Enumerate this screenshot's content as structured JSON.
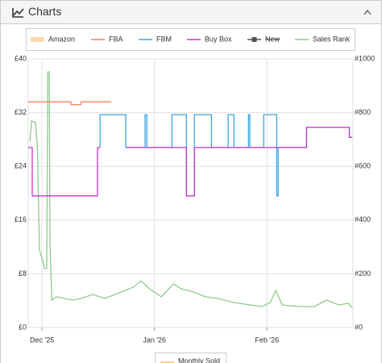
{
  "panel": {
    "title": "Charts"
  },
  "chart_data": {
    "type": "line",
    "xlim": [
      -3.8,
      85.7
    ],
    "xticks": [
      {
        "value": 0,
        "label": "Dec '25"
      },
      {
        "value": 31,
        "label": "Jan '26"
      },
      {
        "value": 62,
        "label": "Feb '26"
      }
    ],
    "ylim": [
      0,
      40
    ],
    "yticks": [
      {
        "value": 0,
        "label": "£0"
      },
      {
        "value": 8,
        "label": "£8"
      },
      {
        "value": 16,
        "label": "£16"
      },
      {
        "value": 24,
        "label": "£24"
      },
      {
        "value": 32,
        "label": "£32"
      },
      {
        "value": 40,
        "label": "£40"
      }
    ],
    "y2lim": [
      0,
      1000
    ],
    "y2ticks": [
      {
        "value": 0,
        "label": "#0"
      },
      {
        "value": 200,
        "label": "#200"
      },
      {
        "value": 400,
        "label": "#400"
      },
      {
        "value": 600,
        "label": "#600"
      },
      {
        "value": 800,
        "label": "#800"
      },
      {
        "value": 1000,
        "label": "#1000"
      }
    ],
    "grid": true,
    "series": [
      {
        "name": "Amazon",
        "color": "#f5c07a",
        "swatch": "box",
        "x": [],
        "values": []
      },
      {
        "name": "FBA",
        "color": "#f0825f",
        "x": [
          -3.8,
          8,
          8,
          10.7,
          10.7,
          19.1
        ],
        "values": [
          33.6,
          33.6,
          33.2,
          33.2,
          33.6,
          33.6
        ]
      },
      {
        "name": "FBM",
        "color": "#3aa6de",
        "x": [
          16,
          16,
          23.1,
          23.1,
          28.4,
          28.4,
          28.9,
          28.9,
          35.8,
          35.8,
          39.8,
          39.8,
          42,
          42,
          46.7,
          46.7,
          51.3,
          51.3,
          52.9,
          52.9,
          56.9,
          56.9,
          57.3,
          57.3,
          61.1,
          61.1,
          64.7,
          64.7,
          65.1,
          65.1,
          72.9,
          72.9,
          84.7,
          84.7,
          85.5
        ],
        "values": [
          26.8,
          31.7,
          31.7,
          26.8,
          26.8,
          31.7,
          31.7,
          26.8,
          26.8,
          31.7,
          31.7,
          19.6,
          19.6,
          31.7,
          31.7,
          26.8,
          26.8,
          31.7,
          31.7,
          26.8,
          26.8,
          31.7,
          31.7,
          26.8,
          26.8,
          31.7,
          31.7,
          19.6,
          19.6,
          26.8,
          26.8,
          29.8,
          29.8,
          28.3,
          28.3
        ]
      },
      {
        "name": "Buy Box",
        "color": "#cc33cc",
        "x": [
          -3.8,
          -2.7,
          -2.7,
          15.3,
          15.3,
          16,
          20,
          23.1,
          39.8,
          39.8,
          42,
          42,
          72.9,
          72.9,
          84.7,
          84.7,
          85.5
        ],
        "values": [
          26.8,
          26.8,
          19.6,
          19.6,
          26.8,
          26.8,
          null,
          26.8,
          26.8,
          19.6,
          19.6,
          26.8,
          26.8,
          29.8,
          29.8,
          28.3,
          28.3
        ]
      },
      {
        "name": "New",
        "color": "#555555",
        "swatch": "marker",
        "hidden": true,
        "x": [],
        "values": []
      },
      {
        "name": "Sales Rank",
        "color": "#8fc98f",
        "axis": "y2",
        "x": [
          -3.3,
          -2.9,
          -1.8,
          -1.3,
          -0.7,
          0,
          0.7,
          1.3,
          1.6,
          2,
          2.2,
          2.7,
          4,
          6.2,
          8.4,
          10.7,
          14,
          17.3,
          21.8,
          25.1,
          27.3,
          29.6,
          32.9,
          36.2,
          38.4,
          41.8,
          45.1,
          48.4,
          52.9,
          57.3,
          60.7,
          62.9,
          64.4,
          66.2,
          70.7,
          75.1,
          78.4,
          81.8,
          84.4,
          85.5
        ],
        "values": [
          694,
          769,
          763,
          679,
          288,
          258,
          219,
          219,
          952,
          952,
          318,
          102,
          114,
          108,
          102,
          108,
          123,
          108,
          132,
          150,
          174,
          144,
          114,
          162,
          144,
          132,
          114,
          108,
          93,
          84,
          78,
          93,
          138,
          84,
          78,
          78,
          102,
          84,
          90,
          72
        ]
      }
    ],
    "legend2": [
      {
        "name": "Monthly Sold",
        "color": "#f5c07a"
      }
    ]
  }
}
